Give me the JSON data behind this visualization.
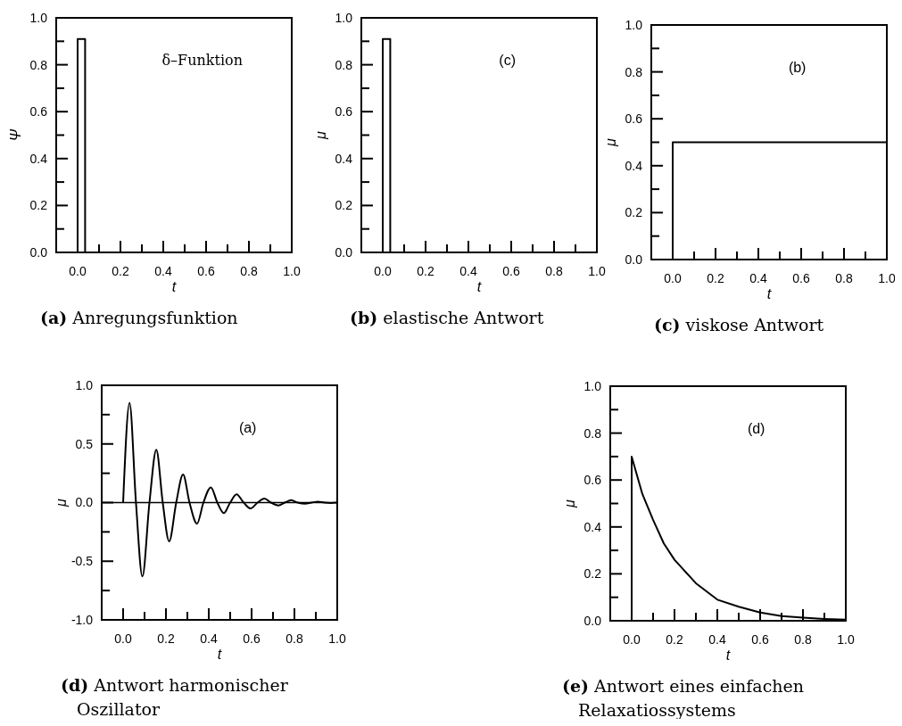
{
  "chart_data": [
    {
      "type": "line",
      "title": "(a) Anregungsfunktion",
      "xlabel": "t",
      "ylabel": "Ψ",
      "annotations": [
        "δ–Funktion"
      ],
      "xlim": [
        -0.1,
        1.0
      ],
      "ylim": [
        0,
        1.0
      ],
      "xticks": [
        {
          "value": 0,
          "label": "0.0"
        },
        {
          "value": 0.1,
          "label": null
        },
        {
          "value": 0.2,
          "label": "0.2"
        },
        {
          "value": 0.3,
          "label": null
        },
        {
          "value": 0.4,
          "label": "0.4"
        },
        {
          "value": 0.5,
          "label": null
        },
        {
          "value": 0.6,
          "label": "0.6"
        },
        {
          "value": 0.7,
          "label": null
        },
        {
          "value": 0.8,
          "label": "0.8"
        },
        {
          "value": 0.9,
          "label": null
        },
        {
          "value": 1,
          "label": "1.0"
        }
      ],
      "yticks": [
        {
          "value": 0,
          "label": "0.0"
        },
        {
          "value": 0.1,
          "label": null
        },
        {
          "value": 0.2,
          "label": "0.2"
        },
        {
          "value": 0.3,
          "label": null
        },
        {
          "value": 0.4,
          "label": "0.4"
        },
        {
          "value": 0.5,
          "label": null
        },
        {
          "value": 0.6,
          "label": "0.6"
        },
        {
          "value": 0.7,
          "label": null
        },
        {
          "value": 0.8,
          "label": "0.8"
        },
        {
          "value": 0.9,
          "label": null
        },
        {
          "value": 1,
          "label": "1.0"
        }
      ],
      "series": [
        {
          "color": "#000000",
          "x": [
            0,
            0,
            0.035,
            0.035
          ],
          "values": [
            0,
            0.91,
            0.91,
            0
          ]
        }
      ]
    },
    {
      "type": "line",
      "title": "(b) elastische Antwort",
      "xlabel": "t",
      "ylabel": "μ",
      "annotations": [
        "(c)"
      ],
      "xlim": [
        -0.1,
        1.0
      ],
      "ylim": [
        0,
        1.0
      ],
      "xticks": [
        {
          "value": 0,
          "label": "0.0"
        },
        {
          "value": 0.1,
          "label": null
        },
        {
          "value": 0.2,
          "label": "0.2"
        },
        {
          "value": 0.3,
          "label": null
        },
        {
          "value": 0.4,
          "label": "0.4"
        },
        {
          "value": 0.5,
          "label": null
        },
        {
          "value": 0.6,
          "label": "0.6"
        },
        {
          "value": 0.7,
          "label": null
        },
        {
          "value": 0.8,
          "label": "0.8"
        },
        {
          "value": 0.9,
          "label": null
        },
        {
          "value": 1,
          "label": "1.0"
        }
      ],
      "yticks": [
        {
          "value": 0,
          "label": "0.0"
        },
        {
          "value": 0.1,
          "label": null
        },
        {
          "value": 0.2,
          "label": "0.2"
        },
        {
          "value": 0.3,
          "label": null
        },
        {
          "value": 0.4,
          "label": "0.4"
        },
        {
          "value": 0.5,
          "label": null
        },
        {
          "value": 0.6,
          "label": "0.6"
        },
        {
          "value": 0.7,
          "label": null
        },
        {
          "value": 0.8,
          "label": "0.8"
        },
        {
          "value": 0.9,
          "label": null
        },
        {
          "value": 1,
          "label": "1.0"
        }
      ],
      "series": [
        {
          "color": "#000000",
          "x": [
            0,
            0,
            0.035,
            0.035
          ],
          "values": [
            0,
            0.91,
            0.91,
            0
          ]
        }
      ]
    },
    {
      "type": "line",
      "title": "(c) viskose Antwort",
      "xlabel": "t",
      "ylabel": "μ",
      "annotations": [
        "(b)"
      ],
      "xlim": [
        -0.1,
        1.0
      ],
      "ylim": [
        0,
        1.0
      ],
      "xticks": [
        {
          "value": 0,
          "label": "0.0"
        },
        {
          "value": 0.1,
          "label": null
        },
        {
          "value": 0.2,
          "label": "0.2"
        },
        {
          "value": 0.3,
          "label": null
        },
        {
          "value": 0.4,
          "label": "0.4"
        },
        {
          "value": 0.5,
          "label": null
        },
        {
          "value": 0.6,
          "label": "0.6"
        },
        {
          "value": 0.7,
          "label": null
        },
        {
          "value": 0.8,
          "label": "0.8"
        },
        {
          "value": 0.9,
          "label": null
        },
        {
          "value": 1,
          "label": "1.0"
        }
      ],
      "yticks": [
        {
          "value": 0,
          "label": "0.0"
        },
        {
          "value": 0.1,
          "label": null
        },
        {
          "value": 0.2,
          "label": "0.2"
        },
        {
          "value": 0.3,
          "label": null
        },
        {
          "value": 0.4,
          "label": "0.4"
        },
        {
          "value": 0.5,
          "label": null
        },
        {
          "value": 0.6,
          "label": "0.6"
        },
        {
          "value": 0.7,
          "label": null
        },
        {
          "value": 0.8,
          "label": "0.8"
        },
        {
          "value": 0.9,
          "label": null
        },
        {
          "value": 1,
          "label": "1.0"
        }
      ],
      "series": [
        {
          "color": "#000000",
          "x": [
            0,
            0,
            1
          ],
          "values": [
            0,
            0.5,
            0.5
          ]
        }
      ]
    },
    {
      "type": "line",
      "title": "(d) Antwort harmonischer Oszillator",
      "xlabel": "t",
      "ylabel": "μ",
      "annotations": [
        "(a)"
      ],
      "xlim": [
        -0.1,
        1.0
      ],
      "ylim": [
        -1.0,
        1.0
      ],
      "xticks": [
        {
          "value": 0,
          "label": "0.0"
        },
        {
          "value": 0.1,
          "label": null
        },
        {
          "value": 0.2,
          "label": "0.2"
        },
        {
          "value": 0.3,
          "label": null
        },
        {
          "value": 0.4,
          "label": "0.4"
        },
        {
          "value": 0.5,
          "label": null
        },
        {
          "value": 0.6,
          "label": "0.6"
        },
        {
          "value": 0.7,
          "label": null
        },
        {
          "value": 0.8,
          "label": "0.8"
        },
        {
          "value": 0.9,
          "label": null
        },
        {
          "value": 1,
          "label": "1.0"
        }
      ],
      "yticks": [
        {
          "value": -1,
          "label": "-1.0"
        },
        {
          "value": -0.75,
          "label": null
        },
        {
          "value": -0.5,
          "label": "-0.5"
        },
        {
          "value": -0.25,
          "label": null
        },
        {
          "value": 0,
          "label": "0.0"
        },
        {
          "value": 0.25,
          "label": null
        },
        {
          "value": 0.5,
          "label": "0.5"
        },
        {
          "value": 0.75,
          "label": null
        },
        {
          "value": 1,
          "label": "1.0"
        }
      ],
      "ref_lines": [
        {
          "axis": "y",
          "value": 0,
          "color": "#000000"
        }
      ],
      "series": [
        {
          "color": "#000000",
          "x": [
            0,
            0.03,
            0.06,
            0.09,
            0.123,
            0.155,
            0.185,
            0.215,
            0.248,
            0.28,
            0.31,
            0.345,
            0.375,
            0.41,
            0.44,
            0.47,
            0.5,
            0.53,
            0.563,
            0.595,
            0.628,
            0.66,
            0.69,
            0.725,
            0.755,
            0.785,
            0.815,
            0.85,
            0.88,
            0.91,
            0.94,
            0.97,
            1.0
          ],
          "values": [
            0,
            0.85,
            0,
            -0.63,
            0,
            0.45,
            0,
            -0.33,
            0,
            0.24,
            0,
            -0.18,
            0,
            0.13,
            0,
            -0.09,
            0,
            0.07,
            0,
            -0.05,
            0,
            0.035,
            0,
            -0.025,
            0,
            0.02,
            0,
            -0.01,
            0,
            0.008,
            0,
            -0.003,
            0
          ]
        }
      ]
    },
    {
      "type": "line",
      "title": "(e) Antwort eines einfachen Relaxatiossystems",
      "xlabel": "t",
      "ylabel": "μ",
      "annotations": [
        "(d)"
      ],
      "xlim": [
        -0.1,
        1.0
      ],
      "ylim": [
        0,
        1.0
      ],
      "xticks": [
        {
          "value": 0,
          "label": "0.0"
        },
        {
          "value": 0.1,
          "label": null
        },
        {
          "value": 0.2,
          "label": "0.2"
        },
        {
          "value": 0.3,
          "label": null
        },
        {
          "value": 0.4,
          "label": "0.4"
        },
        {
          "value": 0.5,
          "label": null
        },
        {
          "value": 0.6,
          "label": "0.6"
        },
        {
          "value": 0.7,
          "label": null
        },
        {
          "value": 0.8,
          "label": "0.8"
        },
        {
          "value": 0.9,
          "label": null
        },
        {
          "value": 1,
          "label": "1.0"
        }
      ],
      "yticks": [
        {
          "value": 0,
          "label": "0.0"
        },
        {
          "value": 0.1,
          "label": null
        },
        {
          "value": 0.2,
          "label": "0.2"
        },
        {
          "value": 0.3,
          "label": null
        },
        {
          "value": 0.4,
          "label": "0.4"
        },
        {
          "value": 0.5,
          "label": null
        },
        {
          "value": 0.6,
          "label": "0.6"
        },
        {
          "value": 0.7,
          "label": null
        },
        {
          "value": 0.8,
          "label": "0.8"
        },
        {
          "value": 0.9,
          "label": null
        },
        {
          "value": 1,
          "label": "1.0"
        }
      ],
      "series": [
        {
          "color": "#000000",
          "x": [
            0,
            0,
            0.05,
            0.1,
            0.15,
            0.2,
            0.3,
            0.4,
            0.5,
            0.6,
            0.7,
            0.8,
            0.9,
            1.0
          ],
          "values": [
            0,
            0.7,
            0.54,
            0.43,
            0.33,
            0.26,
            0.16,
            0.09,
            0.06,
            0.035,
            0.02,
            0.013,
            0.008,
            0.005
          ]
        }
      ]
    }
  ]
}
